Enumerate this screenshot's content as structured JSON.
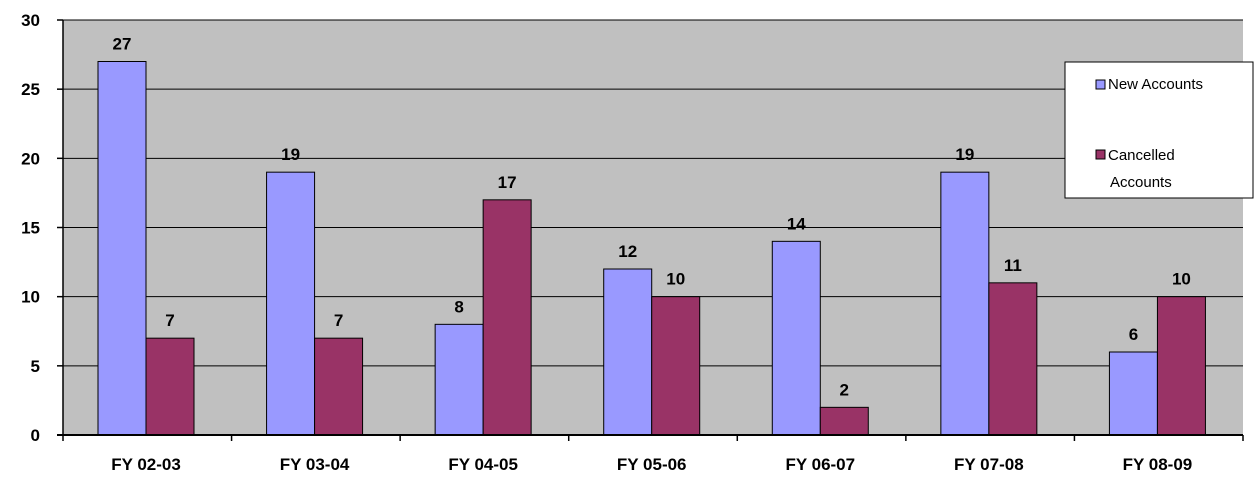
{
  "chart_data": {
    "type": "bar",
    "title": "",
    "xlabel": "",
    "ylabel": "",
    "categories": [
      "FY 02-03",
      "FY 03-04",
      "FY 04-05",
      "FY 05-06",
      "FY 06-07",
      "FY 07-08",
      "FY 08-09"
    ],
    "series": [
      {
        "name": "New Accounts",
        "values": [
          27,
          19,
          8,
          12,
          14,
          19,
          6
        ],
        "color": "#9999ff"
      },
      {
        "name": "Cancelled Accounts",
        "values": [
          7,
          7,
          17,
          10,
          2,
          11,
          10
        ],
        "color": "#993366"
      }
    ],
    "ylim": [
      0,
      30
    ],
    "yticks": [
      0,
      5,
      10,
      15,
      20,
      25,
      30
    ],
    "grid": true,
    "plot_background": "#c0c0c0",
    "legend_position": "right"
  }
}
